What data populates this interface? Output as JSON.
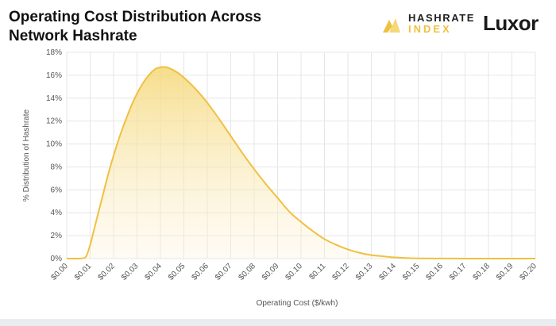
{
  "header": {
    "title_line1": "Operating Cost Distribution Across",
    "title_line2": "Network Hashrate",
    "logo1_top": "HASHRATE",
    "logo1_bottom": "INDEX",
    "logo2": "Luxor"
  },
  "colors": {
    "line": "#f0c040",
    "fill_top": "#f5d878",
    "grid": "#e6e6e6",
    "band": "#e9edf2"
  },
  "chart_data": {
    "type": "area",
    "xlabel": "Operating Cost ($/kwh)",
    "ylabel": "% Distribution of Hashrate",
    "xlim": [
      0,
      0.2
    ],
    "ylim": [
      0,
      18
    ],
    "yticks": [
      0,
      2,
      4,
      6,
      8,
      10,
      12,
      14,
      16,
      18
    ],
    "ytick_labels": [
      "0%",
      "2%",
      "4%",
      "6%",
      "8%",
      "10%",
      "12%",
      "14%",
      "16%",
      "18%"
    ],
    "xticks": [
      0,
      0.01,
      0.02,
      0.03,
      0.04,
      0.05,
      0.06,
      0.07,
      0.08,
      0.09,
      0.1,
      0.11,
      0.12,
      0.13,
      0.14,
      0.15,
      0.16,
      0.17,
      0.18,
      0.19,
      0.2
    ],
    "xtick_labels": [
      "$0.00",
      "$0.01",
      "$0.02",
      "$0.03",
      "$0.04",
      "$0.05",
      "$0.06",
      "$0.07",
      "$0.08",
      "$0.09",
      "$0.10",
      "$0.11",
      "$0.12",
      "$0.13",
      "$0.14",
      "$0.15",
      "$0.16",
      "$0.17",
      "$0.18",
      "$0.19",
      "$0.20"
    ],
    "grid": true,
    "x": [
      0,
      0.005,
      0.008,
      0.01,
      0.0125,
      0.015,
      0.0175,
      0.02,
      0.0225,
      0.025,
      0.0275,
      0.03,
      0.0325,
      0.035,
      0.0375,
      0.04,
      0.0425,
      0.045,
      0.0475,
      0.05,
      0.055,
      0.06,
      0.065,
      0.07,
      0.075,
      0.08,
      0.085,
      0.09,
      0.095,
      0.1,
      0.105,
      0.11,
      0.115,
      0.12,
      0.125,
      0.13,
      0.135,
      0.14,
      0.145,
      0.15,
      0.16,
      0.17,
      0.18,
      0.19,
      0.2
    ],
    "values": [
      0,
      0,
      0.1,
      1.2,
      3.2,
      5.2,
      7.2,
      9.0,
      10.6,
      12.0,
      13.3,
      14.4,
      15.3,
      16.0,
      16.5,
      16.7,
      16.7,
      16.5,
      16.2,
      15.8,
      14.8,
      13.6,
      12.2,
      10.7,
      9.2,
      7.8,
      6.5,
      5.3,
      4.1,
      3.2,
      2.4,
      1.7,
      1.2,
      0.8,
      0.5,
      0.3,
      0.2,
      0.1,
      0.05,
      0.02,
      0.01,
      0,
      0,
      0,
      0
    ]
  }
}
